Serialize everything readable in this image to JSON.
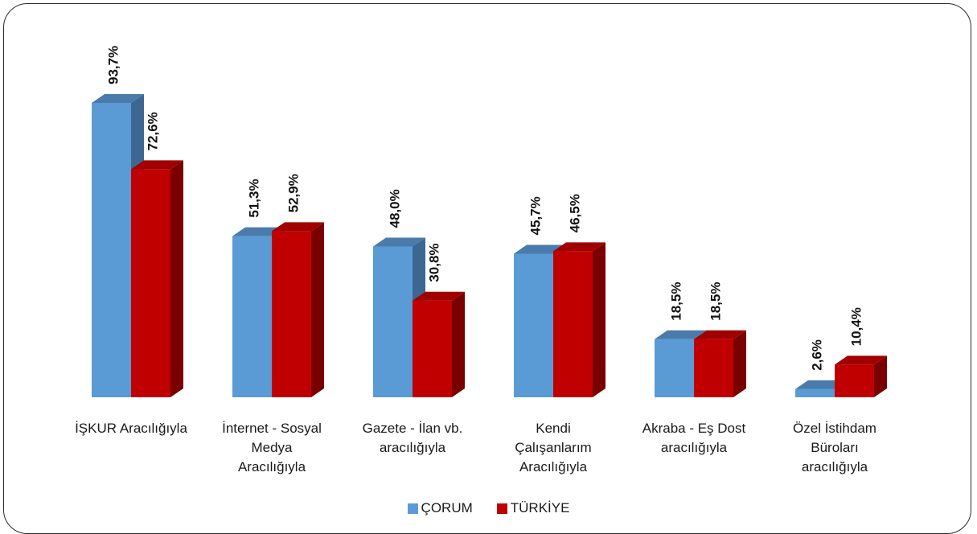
{
  "chart_data": {
    "type": "bar",
    "categories": [
      [
        "İŞKUR Aracılığıyla"
      ],
      [
        "İnternet - Sosyal",
        "Medya",
        "Aracılığıyla"
      ],
      [
        "Gazete - İlan vb.",
        "aracılığıyla"
      ],
      [
        "Kendi",
        "Çalışanlarım",
        "Aracılığıyla"
      ],
      [
        "Akraba - Eş Dost",
        "aracılığıyla"
      ],
      [
        "Özel İstihdam",
        "Büroları",
        "aracılığıyla"
      ]
    ],
    "series": [
      {
        "name": "ÇORUM",
        "values": [
          93.7,
          51.3,
          48.0,
          45.7,
          18.5,
          2.6
        ],
        "labels": [
          "93,7%",
          "51,3%",
          "48,0%",
          "45,7%",
          "18,5%",
          "2,6%"
        ],
        "color": "#5B9BD5",
        "top_color": "#4A7BAA",
        "side_color": "#3C6791"
      },
      {
        "name": "TÜRKİYE",
        "values": [
          72.6,
          52.9,
          30.8,
          46.5,
          18.5,
          10.4
        ],
        "labels": [
          "72,6%",
          "52,9%",
          "30,8%",
          "46,5%",
          "18,5%",
          "10,4%"
        ],
        "color": "#C00000",
        "top_color": "#A00000",
        "side_color": "#7A0000"
      }
    ],
    "ylim": [
      0,
      100
    ],
    "grid": false,
    "legend_position": "bottom"
  }
}
